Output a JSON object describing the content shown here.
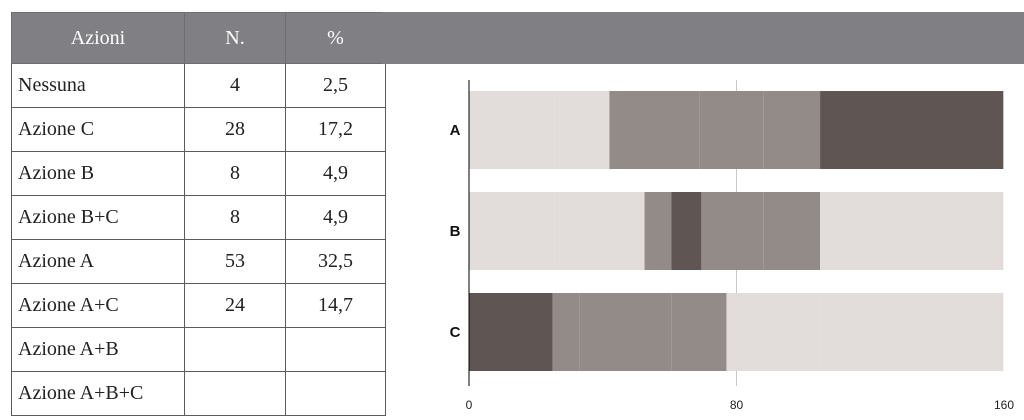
{
  "table": {
    "headers": [
      "Azioni",
      "N.",
      "%"
    ],
    "rows": [
      [
        "Nessuna",
        "4",
        "2,5"
      ],
      [
        "Azione C",
        "28",
        "17,2"
      ],
      [
        "Azione B",
        "8",
        "4,9"
      ],
      [
        "Azione B+C",
        "8",
        "4,9"
      ],
      [
        "Azione A",
        "53",
        "32,5"
      ],
      [
        "Azione A+C",
        "24",
        "14,7"
      ],
      [
        "Azione A+B",
        "",
        ""
      ],
      [
        "Azione A+B+C",
        "",
        ""
      ]
    ]
  },
  "chart_data": {
    "type": "bar",
    "orientation": "horizontal",
    "stacked": true,
    "categories": [
      "A",
      "B",
      "C"
    ],
    "xlim": [
      0,
      160
    ],
    "xticks": [
      0,
      80,
      160
    ],
    "grid": "vertical line at 80",
    "legend": "none",
    "segments": [
      [
        {
          "from": 0,
          "to": 25.6,
          "color": "#e2dddb"
        },
        {
          "from": 25.6,
          "to": 42,
          "color": "#e2dddb"
        },
        {
          "from": 42,
          "to": 69,
          "color": "#928b87"
        },
        {
          "from": 69,
          "to": 88,
          "color": "#928b87"
        },
        {
          "from": 88,
          "to": 105,
          "color": "#928b87"
        },
        {
          "from": 105,
          "to": 159.8,
          "color": "#5f5553"
        }
      ],
      [
        {
          "from": 0,
          "to": 25.6,
          "color": "#e2dddb"
        },
        {
          "from": 25.6,
          "to": 52.5,
          "color": "#e2dddb"
        },
        {
          "from": 52.5,
          "to": 60.5,
          "color": "#928b87"
        },
        {
          "from": 60.5,
          "to": 69.5,
          "color": "#5f5553"
        },
        {
          "from": 69.5,
          "to": 88,
          "color": "#928b87"
        },
        {
          "from": 88,
          "to": 105,
          "color": "#928b87"
        },
        {
          "from": 105,
          "to": 159.8,
          "color": "#e2dddb"
        }
      ],
      [
        {
          "from": 0,
          "to": 25,
          "color": "#5f5553"
        },
        {
          "from": 25,
          "to": 33,
          "color": "#928b87"
        },
        {
          "from": 33,
          "to": 60.5,
          "color": "#928b87"
        },
        {
          "from": 60.5,
          "to": 77,
          "color": "#928b87"
        },
        {
          "from": 77,
          "to": 105,
          "color": "#e2dddb"
        },
        {
          "from": 105,
          "to": 159.8,
          "color": "#e2dddb"
        }
      ]
    ]
  }
}
